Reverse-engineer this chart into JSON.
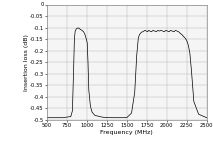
{
  "title": "",
  "xlabel": "Frequency (MHz)",
  "ylabel": "Insertion loss (dB)",
  "xlim": [
    500,
    2500
  ],
  "ylim": [
    -0.5,
    0
  ],
  "xticks": [
    500,
    750,
    1000,
    1250,
    1500,
    1750,
    2000,
    2250,
    2500
  ],
  "yticks": [
    0,
    -0.05,
    -0.1,
    -0.15,
    -0.2,
    -0.25,
    -0.3,
    -0.35,
    -0.4,
    -0.45,
    -0.5
  ],
  "line_color": "#000000",
  "grid_color": "#bbbbbb",
  "background_color": "#f5f5f5",
  "curve": {
    "freq": [
      500,
      700,
      800,
      820,
      835,
      845,
      855,
      870,
      885,
      900,
      920,
      940,
      960,
      975,
      990,
      1005,
      1015,
      1025,
      1045,
      1065,
      1100,
      1200,
      1300,
      1400,
      1500,
      1560,
      1600,
      1625,
      1645,
      1660,
      1672,
      1685,
      1700,
      1715,
      1730,
      1745,
      1760,
      1775,
      1790,
      1810,
      1830,
      1850,
      1870,
      1890,
      1910,
      1930,
      1950,
      1970,
      1990,
      2010,
      2030,
      2050,
      2070,
      2090,
      2110,
      2130,
      2150,
      2170,
      2190,
      2210,
      2230,
      2250,
      2270,
      2290,
      2310,
      2340,
      2400,
      2500
    ],
    "loss": [
      -0.49,
      -0.49,
      -0.485,
      -0.46,
      -0.28,
      -0.145,
      -0.115,
      -0.105,
      -0.102,
      -0.102,
      -0.108,
      -0.112,
      -0.118,
      -0.128,
      -0.145,
      -0.165,
      -0.25,
      -0.37,
      -0.44,
      -0.465,
      -0.48,
      -0.488,
      -0.49,
      -0.49,
      -0.49,
      -0.47,
      -0.38,
      -0.22,
      -0.145,
      -0.13,
      -0.125,
      -0.12,
      -0.118,
      -0.115,
      -0.112,
      -0.115,
      -0.118,
      -0.112,
      -0.115,
      -0.118,
      -0.112,
      -0.115,
      -0.118,
      -0.112,
      -0.115,
      -0.112,
      -0.115,
      -0.118,
      -0.112,
      -0.115,
      -0.118,
      -0.112,
      -0.115,
      -0.118,
      -0.112,
      -0.115,
      -0.118,
      -0.125,
      -0.13,
      -0.138,
      -0.145,
      -0.155,
      -0.175,
      -0.21,
      -0.285,
      -0.42,
      -0.475,
      -0.49
    ]
  }
}
